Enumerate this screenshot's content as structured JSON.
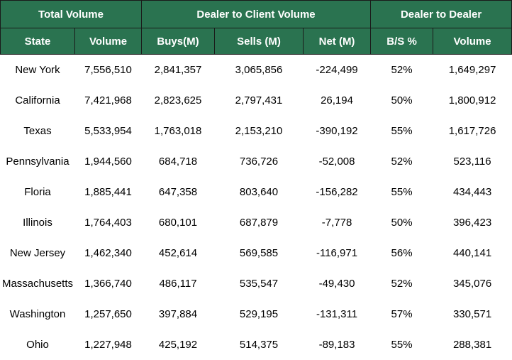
{
  "group_headers": [
    "Total Volume",
    "Dealer to Client Volume",
    "Dealer to Dealer"
  ],
  "columns": [
    "State",
    "Volume",
    "Buys(M)",
    "Sells (M)",
    "Net (M)",
    "B/S %",
    "Volume"
  ],
  "rows": [
    [
      "New York",
      "7,556,510",
      "2,841,357",
      "3,065,856",
      "-224,499",
      "52%",
      "1,649,297"
    ],
    [
      "California",
      "7,421,968",
      "2,823,625",
      "2,797,431",
      "26,194",
      "50%",
      "1,800,912"
    ],
    [
      "Texas",
      "5,533,954",
      "1,763,018",
      "2,153,210",
      "-390,192",
      "55%",
      "1,617,726"
    ],
    [
      "Pennsylvania",
      "1,944,560",
      "684,718",
      "736,726",
      "-52,008",
      "52%",
      "523,116"
    ],
    [
      "Floria",
      "1,885,441",
      "647,358",
      "803,640",
      "-156,282",
      "55%",
      "434,443"
    ],
    [
      "Illinois",
      "1,764,403",
      "680,101",
      "687,879",
      "-7,778",
      "50%",
      "396,423"
    ],
    [
      "New Jersey",
      "1,462,340",
      "452,614",
      "569,585",
      "-116,971",
      "56%",
      "440,141"
    ],
    [
      "Massachusetts",
      "1,366,740",
      "486,117",
      "535,547",
      "-49,430",
      "52%",
      "345,076"
    ],
    [
      "Washington",
      "1,257,650",
      "397,884",
      "529,195",
      "-131,311",
      "57%",
      "330,571"
    ],
    [
      "Ohio",
      "1,227,948",
      "425,192",
      "514,375",
      "-89,183",
      "55%",
      "288,381"
    ]
  ]
}
